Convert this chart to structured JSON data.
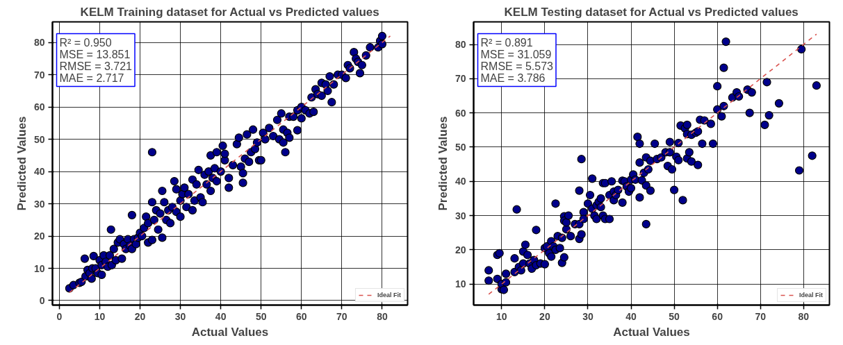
{
  "chart_data": [
    {
      "type": "scatter",
      "title": "KELM Training dataset for Actual vs Predicted values",
      "xlabel": "Actual Values",
      "ylabel": "Predicted Values",
      "xlim": [
        -1.7,
        86.3
      ],
      "ylim": [
        -1.4,
        86.4
      ],
      "xticks": [
        0,
        10,
        20,
        30,
        40,
        50,
        60,
        70,
        80
      ],
      "yticks": [
        0,
        10,
        20,
        30,
        40,
        50,
        60,
        70,
        80
      ],
      "grid": true,
      "legend": "bottom right",
      "annotations": [
        "R² = 0.950",
        "MSE = 13.851",
        "RMSE = 3.721",
        "MAE = 2.717"
      ],
      "series": [
        {
          "marker": "circle",
          "color": "#00008b",
          "x": [
            2.5,
            3.5,
            5,
            5.5,
            6.3,
            6.5,
            7,
            7.5,
            8,
            8.5,
            8.2,
            9,
            9.5,
            10,
            10.5,
            10.5,
            11,
            11.5,
            12,
            12.5,
            12.8,
            13,
            13.5,
            14,
            14.5,
            15,
            15.5,
            16,
            16.5,
            17,
            17.5,
            18,
            18,
            18.5,
            19,
            19.5,
            20,
            20.5,
            21,
            21.5,
            22,
            22,
            23,
            23,
            23,
            23.5,
            24,
            24.5,
            25,
            25.5,
            25.5,
            26,
            26.5,
            27,
            27.5,
            28,
            28.5,
            29,
            29,
            30,
            30,
            30.5,
            31,
            31.5,
            32,
            33,
            33,
            33.5,
            34,
            34.5,
            35,
            35.5,
            36,
            36.5,
            37,
            37.5,
            37.5,
            38,
            38.5,
            39,
            39,
            40,
            40.5,
            41,
            41,
            42,
            42,
            43,
            44,
            44.5,
            45,
            45.5,
            45.5,
            46,
            46.5,
            47,
            47.5,
            48,
            48.5,
            49,
            49.5,
            50,
            50.5,
            51,
            52,
            53,
            54,
            54.5,
            55,
            55.5,
            55.5,
            56,
            56.5,
            57,
            57,
            58,
            59,
            59,
            60,
            60,
            61,
            62,
            62.5,
            63,
            63.5,
            64,
            65,
            65,
            66,
            66.5,
            67,
            67.5,
            68,
            69,
            70,
            71,
            71.5,
            72,
            73,
            73.5,
            74,
            74.5,
            75,
            76,
            77,
            79,
            79.5,
            80,
            80
          ],
          "values": [
            3.8,
            4.8,
            5.5,
            5.8,
            13,
            7.5,
            9.5,
            8.5,
            6.8,
            13.8,
            10,
            10,
            8.5,
            12.5,
            8,
            11,
            14,
            12,
            10.5,
            14,
            22,
            11,
            16,
            12.5,
            18,
            19,
            13,
            17.5,
            16,
            19,
            17,
            26.5,
            16,
            19,
            17.5,
            19.5,
            21,
            20,
            22.5,
            26,
            18,
            24,
            46,
            30.5,
            18.8,
            25,
            28,
            22,
            27,
            34,
            19.5,
            30.5,
            25,
            28,
            24,
            29,
            37,
            34.5,
            27.5,
            31,
            26,
            33,
            35,
            29,
            33,
            37.5,
            28,
            31,
            36,
            40.5,
            32,
            30.5,
            39,
            36,
            40,
            45,
            34,
            38,
            41,
            46,
            37,
            40,
            48,
            43.5,
            45.5,
            35,
            38,
            42,
            48.5,
            50.5,
            41.5,
            36.5,
            39.5,
            44,
            51.5,
            43,
            46,
            53,
            47,
            49,
            43.5,
            43.5,
            52,
            50,
            53.5,
            51,
            56,
            50,
            58,
            53,
            49,
            46,
            52,
            50.5,
            57,
            57,
            52.8,
            59,
            60,
            56.5,
            59,
            58,
            63,
            58.5,
            65.5,
            64,
            67.5,
            63.5,
            67,
            65,
            69.5,
            61.5,
            67,
            70,
            70,
            69,
            73,
            72,
            77,
            75,
            74,
            70.5,
            73,
            76,
            78.5,
            78.5,
            80.5,
            79.5,
            82
          ]
        },
        {
          "type": "line",
          "name": "Ideal Fit",
          "color": "#d9534f",
          "line_style": "dashed",
          "x": [
            2.5,
            82
          ],
          "values": [
            2.5,
            82
          ]
        }
      ]
    },
    {
      "type": "scatter",
      "title": "KELM Testing dataset for Actual vs Predicted values",
      "xlabel": "Actual Values",
      "ylabel": "Predicted Values",
      "xlim": [
        3.5,
        86
      ],
      "ylim": [
        3.85,
        86.6
      ],
      "xticks": [
        10,
        20,
        30,
        40,
        50,
        60,
        70,
        80
      ],
      "yticks": [
        10,
        20,
        30,
        40,
        50,
        60,
        70,
        80
      ],
      "grid": true,
      "legend": "bottom right",
      "annotations": [
        "R² = 0.891",
        "MSE = 31.059",
        "RMSE = 5.573",
        "MAE = 3.786"
      ],
      "series": [
        {
          "marker": "circle",
          "color": "#00008b",
          "x": [
            7,
            7,
            9,
            9,
            9.5,
            10,
            10,
            10.5,
            11,
            11,
            13,
            13,
            13.5,
            14,
            14.5,
            15,
            15,
            15.5,
            16,
            16.5,
            17,
            17.5,
            18,
            18,
            19,
            20,
            20,
            20.5,
            21,
            21.5,
            21.5,
            22,
            22.5,
            22.5,
            23,
            23.5,
            24,
            24,
            24.5,
            24.5,
            24.5,
            25,
            25,
            25.5,
            26,
            27,
            28,
            28,
            28,
            28.5,
            28.5,
            29,
            29,
            30,
            30.5,
            31,
            31,
            31.5,
            32,
            32,
            32.5,
            33,
            33,
            33.5,
            33.5,
            34,
            34,
            35,
            35,
            35.5,
            36,
            36,
            36.5,
            37,
            38,
            38,
            38.5,
            39,
            39.5,
            40,
            40,
            40.5,
            41,
            41.5,
            42,
            42,
            42,
            42.5,
            43,
            43.5,
            43.5,
            43.5,
            44,
            44.5,
            44.5,
            45.5,
            46,
            47,
            48,
            48.5,
            49,
            49,
            49.5,
            50,
            50.5,
            51,
            51,
            51.5,
            52,
            52.5,
            53,
            53,
            53,
            53.5,
            54,
            54,
            55,
            55.5,
            55.5,
            56,
            56.5,
            57,
            58.5,
            59,
            60,
            60,
            61,
            61.5,
            61.5,
            62,
            63.5,
            64.5,
            65,
            67,
            67.5,
            68,
            71,
            71.5,
            72,
            74.3,
            79,
            79.5,
            82,
            83
          ],
          "values": [
            14,
            11,
            18.5,
            11.5,
            19,
            8.5,
            10,
            8.3,
            10.5,
            13,
            17.5,
            13.5,
            31.8,
            15,
            14,
            16,
            19.5,
            21.5,
            18.5,
            16,
            14.5,
            17,
            25.8,
            15.5,
            16,
            20.5,
            15.8,
            21,
            19,
            22.5,
            18,
            21,
            20,
            33.5,
            24,
            20.5,
            23.5,
            16.2,
            29.8,
            17.8,
            28.5,
            26,
            28,
            30,
            24,
            27.5,
            23.2,
            37.3,
            27.5,
            24.5,
            46.5,
            31,
            29,
            33.5,
            36,
            40.8,
            32,
            30,
            29,
            33,
            34,
            35,
            32.5,
            30,
            39.5,
            29,
            39.5,
            29,
            36,
            40,
            37,
            34.5,
            36,
            37.5,
            40.2,
            33.8,
            40,
            38.5,
            37,
            40.5,
            38,
            42,
            40.5,
            53,
            51,
            35.3,
            45.5,
            40.3,
            42.5,
            47,
            27.5,
            38.8,
            43.5,
            37.3,
            46,
            51,
            46.5,
            47,
            48.5,
            44.5,
            51.5,
            48.5,
            43.5,
            37.5,
            47.2,
            51.2,
            46.2,
            56.3,
            34.5,
            55.5,
            56.5,
            53.8,
            46.7,
            48.5,
            45.8,
            53.6,
            54.2,
            54.6,
            44.8,
            58,
            51,
            57.8,
            56.8,
            51,
            61,
            67.8,
            59,
            62,
            73.2,
            80.8,
            64.5,
            66,
            64.8,
            66.8,
            60,
            66,
            56.5,
            69,
            59.3,
            62.8,
            43.2,
            78.6,
            47.5,
            68
          ]
        },
        {
          "type": "line",
          "name": "Ideal Fit",
          "color": "#d9534f",
          "line_style": "dashed",
          "x": [
            7,
            83
          ],
          "values": [
            7,
            83
          ]
        }
      ]
    }
  ]
}
